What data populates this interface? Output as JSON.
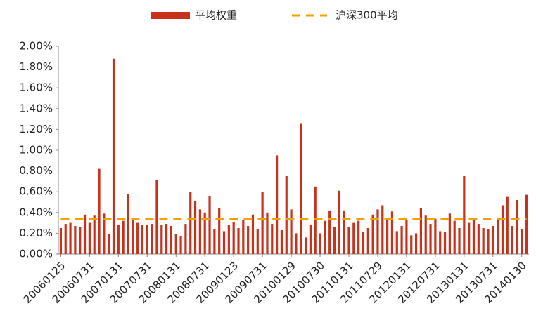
{
  "chart_data": {
    "type": "bar",
    "categories": [
      "20060125",
      null,
      null,
      null,
      null,
      null,
      "20060731",
      null,
      null,
      null,
      null,
      null,
      "20070131",
      null,
      null,
      null,
      null,
      null,
      "20070731",
      null,
      null,
      null,
      null,
      null,
      "20080131",
      null,
      null,
      null,
      null,
      null,
      "20080731",
      null,
      null,
      null,
      null,
      null,
      "20090123",
      null,
      null,
      null,
      null,
      null,
      "20090731",
      null,
      null,
      null,
      null,
      null,
      "20100129",
      null,
      null,
      null,
      null,
      null,
      "20100730",
      null,
      null,
      null,
      null,
      null,
      "20110131",
      null,
      null,
      null,
      null,
      null,
      "20110729",
      null,
      null,
      null,
      null,
      null,
      "20120131",
      null,
      null,
      null,
      null,
      null,
      "20120731",
      null,
      null,
      null,
      null,
      null,
      "20130131",
      null,
      null,
      null,
      null,
      null,
      "20130731",
      null,
      null,
      null,
      null,
      null,
      "20140130",
      null
    ],
    "series": [
      {
        "name": "平均权重",
        "color": "#c8321a",
        "values": [
          0.25,
          0.29,
          0.3,
          0.27,
          0.26,
          0.38,
          0.3,
          0.37,
          0.82,
          0.39,
          0.19,
          1.88,
          0.28,
          0.32,
          0.58,
          0.33,
          0.3,
          0.28,
          0.28,
          0.29,
          0.71,
          0.28,
          0.29,
          0.27,
          0.19,
          0.17,
          0.29,
          0.6,
          0.51,
          0.43,
          0.4,
          0.56,
          0.24,
          0.44,
          0.22,
          0.28,
          0.31,
          0.25,
          0.33,
          0.27,
          0.38,
          0.24,
          0.6,
          0.4,
          0.29,
          0.95,
          0.23,
          0.75,
          0.43,
          0.2,
          1.26,
          0.16,
          0.28,
          0.65,
          0.2,
          0.32,
          0.42,
          0.26,
          0.61,
          0.42,
          0.26,
          0.3,
          0.32,
          0.21,
          0.25,
          0.38,
          0.43,
          0.47,
          0.35,
          0.41,
          0.22,
          0.27,
          0.33,
          0.18,
          0.2,
          0.44,
          0.37,
          0.29,
          0.34,
          0.22,
          0.21,
          0.39,
          0.32,
          0.25,
          0.75,
          0.3,
          0.34,
          0.29,
          0.25,
          0.24,
          0.27,
          0.34,
          0.47,
          0.55,
          0.27,
          0.52,
          0.24,
          0.57
        ]
      },
      {
        "name": "沪深300平均",
        "color": "#f5a000",
        "type": "line",
        "values": [
          0.34,
          0.34,
          0.34,
          0.34,
          0.34,
          0.34,
          0.34,
          0.34,
          0.34,
          0.34,
          0.34,
          0.34,
          0.34,
          0.34,
          0.34,
          0.34,
          0.34,
          0.34,
          0.34,
          0.34,
          0.34,
          0.34,
          0.34,
          0.34,
          0.34,
          0.34,
          0.34,
          0.34,
          0.34,
          0.34,
          0.34,
          0.34,
          0.34,
          0.34,
          0.34,
          0.34,
          0.34,
          0.34,
          0.34,
          0.34,
          0.34,
          0.34,
          0.34,
          0.34,
          0.34,
          0.34,
          0.34,
          0.34,
          0.34,
          0.34,
          0.34,
          0.34,
          0.34,
          0.34,
          0.34,
          0.34,
          0.34,
          0.34,
          0.34,
          0.34,
          0.34,
          0.34,
          0.34,
          0.34,
          0.34,
          0.34,
          0.34,
          0.34,
          0.34,
          0.34,
          0.34,
          0.34,
          0.34,
          0.34,
          0.34,
          0.34,
          0.34,
          0.34,
          0.34,
          0.34,
          0.34,
          0.34,
          0.34,
          0.34,
          0.34,
          0.34,
          0.34,
          0.34,
          0.34,
          0.34,
          0.34,
          0.34,
          0.34,
          0.34,
          0.34,
          0.34,
          0.34,
          0.34
        ]
      }
    ],
    "ylim": [
      0,
      2
    ],
    "yticks": [
      {
        "value": 0,
        "label": "0.00%"
      },
      {
        "value": 0.2,
        "label": "0.20%"
      },
      {
        "value": 0.4,
        "label": "0.40%"
      },
      {
        "value": 0.6,
        "label": "0.60%"
      },
      {
        "value": 0.8,
        "label": "0.80%"
      },
      {
        "value": 1.0,
        "label": "1.00%"
      },
      {
        "value": 1.2,
        "label": "1.20%"
      },
      {
        "value": 1.4,
        "label": "1.40%"
      },
      {
        "value": 1.6,
        "label": "1.60%"
      },
      {
        "value": 1.8,
        "label": "1.80%"
      },
      {
        "value": 2.0,
        "label": "2.00%"
      }
    ],
    "grid": false,
    "legend": "top"
  }
}
